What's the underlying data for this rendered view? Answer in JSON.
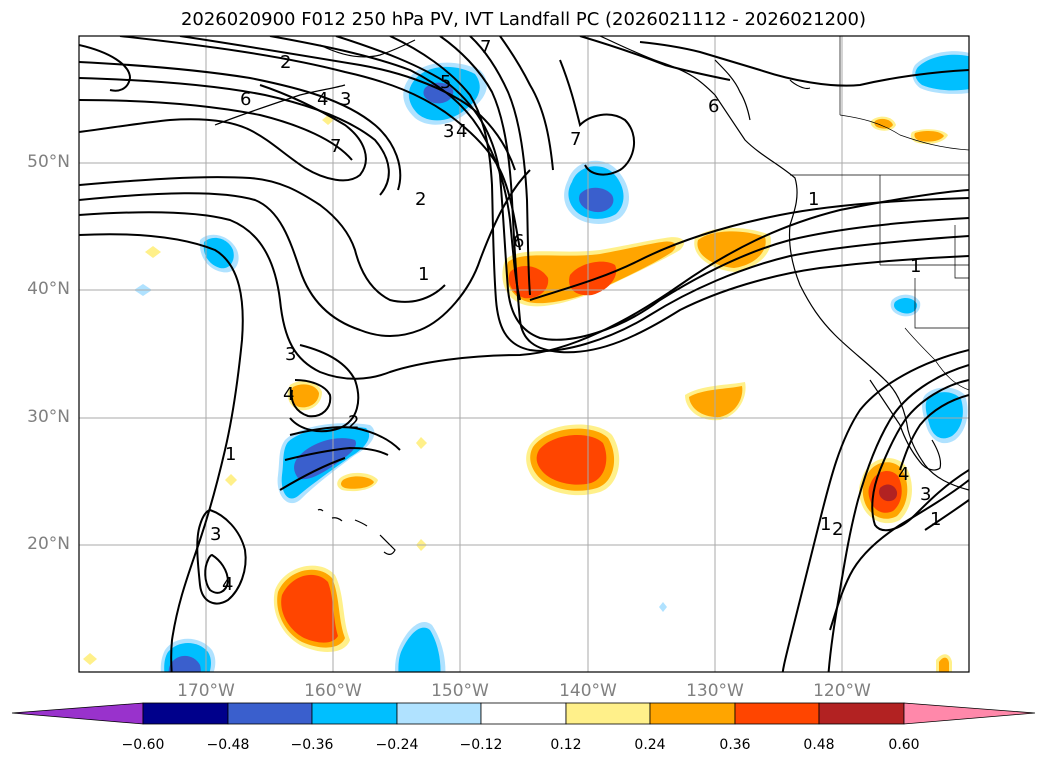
{
  "title": "2026020900 F012 250 hPa PV, IVT Landfall PC (2026021112 - 2026021200)",
  "map": {
    "projection": "Plate Carree",
    "lon_range": [
      -180,
      -110
    ],
    "lat_range": [
      10,
      60
    ],
    "gridlines": true,
    "lat_ticks": [
      {
        "value": 20,
        "label": "20°N"
      },
      {
        "value": 30,
        "label": "30°N"
      },
      {
        "value": 40,
        "label": "40°N"
      },
      {
        "value": 50,
        "label": "50°N"
      }
    ],
    "lon_ticks": [
      {
        "value": -170,
        "label": "170°W"
      },
      {
        "value": -160,
        "label": "160°W"
      },
      {
        "value": -150,
        "label": "150°W"
      },
      {
        "value": -140,
        "label": "140°W"
      },
      {
        "value": -130,
        "label": "130°W"
      },
      {
        "value": -120,
        "label": "120°W"
      }
    ],
    "contour_color": "#000000"
  },
  "colorbar": {
    "levels": [
      "−0.60",
      "−0.48",
      "−0.36",
      "−0.24",
      "−0.12",
      "0.12",
      "0.24",
      "0.36",
      "0.48",
      "0.60"
    ],
    "colors": [
      "#9932cc",
      "#00008b",
      "#3a5fcd",
      "#00bfff",
      "#b0e2ff",
      "#ffffff",
      "#fff08a",
      "#ffa500",
      "#ff4500",
      "#b22222",
      "#ff88aa"
    ],
    "extend": "both"
  }
}
